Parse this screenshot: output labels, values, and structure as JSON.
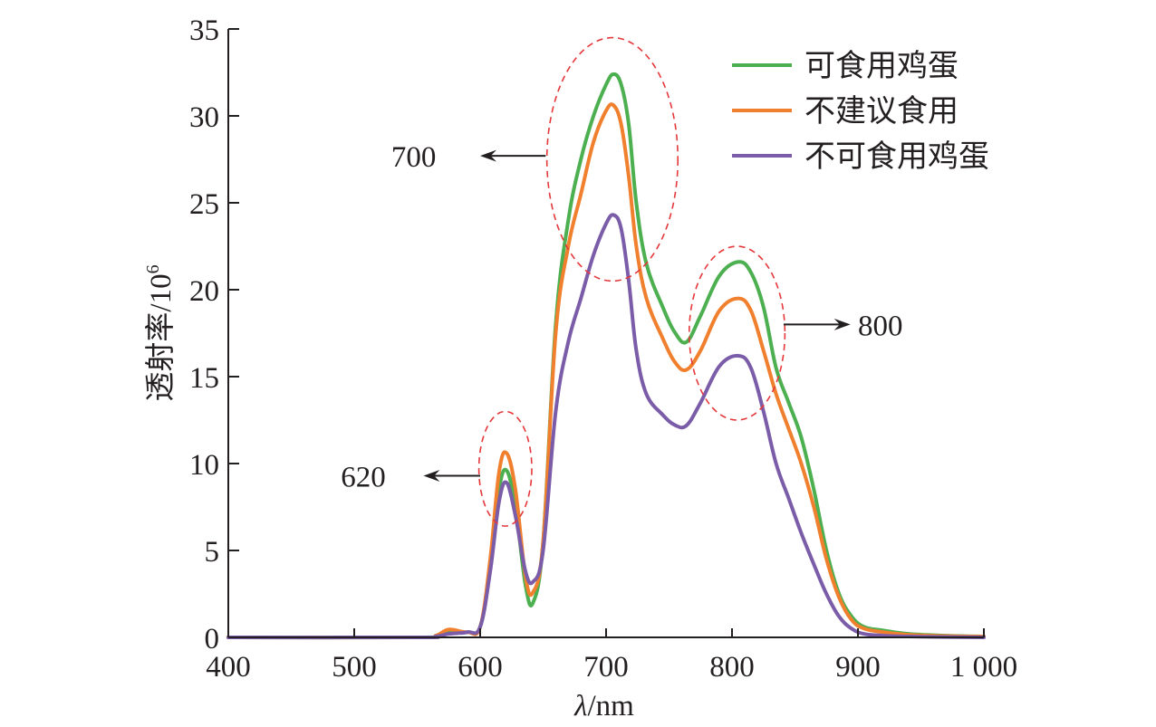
{
  "chart_data": {
    "type": "line",
    "xlabel": "λ/nm",
    "ylabel": "透射率/10",
    "ylabel_superscript": "6",
    "xlim": [
      400,
      1000
    ],
    "ylim": [
      0,
      35
    ],
    "x_ticks": [
      400,
      500,
      600,
      700,
      800,
      900,
      1000
    ],
    "x_tick_labels": [
      "400",
      "500",
      "600",
      "700",
      "800",
      "900",
      "1 000"
    ],
    "y_ticks": [
      0,
      5,
      10,
      15,
      20,
      25,
      30,
      35
    ],
    "y_tick_labels": [
      "0",
      "5",
      "10",
      "15",
      "20",
      "25",
      "30",
      "35"
    ],
    "grid": false,
    "legend_position": "top-right",
    "series": [
      {
        "name": "可食用鸡蛋",
        "color": "#4caf50",
        "points": [
          [
            400,
            0
          ],
          [
            550,
            0
          ],
          [
            565,
            0.1
          ],
          [
            575,
            0.3
          ],
          [
            590,
            0.3
          ],
          [
            600,
            0.6
          ],
          [
            608,
            4
          ],
          [
            615,
            8.5
          ],
          [
            621,
            9.6
          ],
          [
            628,
            7.5
          ],
          [
            636,
            3.0
          ],
          [
            642,
            2.0
          ],
          [
            650,
            5.5
          ],
          [
            660,
            18
          ],
          [
            670,
            24
          ],
          [
            680,
            27.5
          ],
          [
            690,
            30.0
          ],
          [
            700,
            31.8
          ],
          [
            706,
            32.4
          ],
          [
            712,
            31.8
          ],
          [
            718,
            29.5
          ],
          [
            724,
            25.0
          ],
          [
            732,
            21.5
          ],
          [
            745,
            19.0
          ],
          [
            755,
            17.5
          ],
          [
            764,
            17.0
          ],
          [
            775,
            18.5
          ],
          [
            790,
            20.8
          ],
          [
            805,
            21.6
          ],
          [
            815,
            21.0
          ],
          [
            825,
            19.0
          ],
          [
            835,
            15.5
          ],
          [
            845,
            13.5
          ],
          [
            855,
            11.5
          ],
          [
            865,
            8.5
          ],
          [
            875,
            5.0
          ],
          [
            885,
            2.5
          ],
          [
            895,
            1.2
          ],
          [
            905,
            0.6
          ],
          [
            920,
            0.4
          ],
          [
            940,
            0.2
          ],
          [
            970,
            0.1
          ],
          [
            1000,
            0.05
          ]
        ]
      },
      {
        "name": "不建议食用",
        "color": "#f07f2e",
        "points": [
          [
            400,
            0
          ],
          [
            550,
            0
          ],
          [
            565,
            0.1
          ],
          [
            575,
            0.45
          ],
          [
            590,
            0.3
          ],
          [
            600,
            0.6
          ],
          [
            608,
            4.5
          ],
          [
            615,
            9.5
          ],
          [
            621,
            10.6
          ],
          [
            628,
            8.5
          ],
          [
            636,
            3.5
          ],
          [
            642,
            2.6
          ],
          [
            650,
            5.5
          ],
          [
            660,
            17.5
          ],
          [
            670,
            22.5
          ],
          [
            680,
            25.5
          ],
          [
            690,
            28.5
          ],
          [
            700,
            30.3
          ],
          [
            706,
            30.6
          ],
          [
            712,
            29.5
          ],
          [
            718,
            26.5
          ],
          [
            724,
            22.5
          ],
          [
            732,
            19.5
          ],
          [
            745,
            17.2
          ],
          [
            755,
            15.8
          ],
          [
            764,
            15.4
          ],
          [
            775,
            16.5
          ],
          [
            790,
            18.8
          ],
          [
            805,
            19.5
          ],
          [
            815,
            18.8
          ],
          [
            825,
            16.5
          ],
          [
            835,
            14.0
          ],
          [
            845,
            12.0
          ],
          [
            855,
            10.0
          ],
          [
            865,
            7.5
          ],
          [
            875,
            4.5
          ],
          [
            885,
            2.3
          ],
          [
            895,
            1.0
          ],
          [
            905,
            0.5
          ],
          [
            920,
            0.3
          ],
          [
            940,
            0.15
          ],
          [
            970,
            0.08
          ],
          [
            1000,
            0.05
          ]
        ]
      },
      {
        "name": "不可食用鸡蛋",
        "color": "#7a5ca8",
        "points": [
          [
            400,
            0
          ],
          [
            550,
            0
          ],
          [
            565,
            0.05
          ],
          [
            575,
            0.2
          ],
          [
            590,
            0.3
          ],
          [
            600,
            0.6
          ],
          [
            608,
            3.8
          ],
          [
            615,
            7.8
          ],
          [
            621,
            8.9
          ],
          [
            628,
            7.0
          ],
          [
            636,
            3.8
          ],
          [
            642,
            3.2
          ],
          [
            650,
            5.0
          ],
          [
            660,
            13.0
          ],
          [
            670,
            17.0
          ],
          [
            680,
            19.5
          ],
          [
            690,
            22.0
          ],
          [
            700,
            23.8
          ],
          [
            706,
            24.3
          ],
          [
            712,
            23.5
          ],
          [
            718,
            20.5
          ],
          [
            724,
            16.5
          ],
          [
            732,
            14.0
          ],
          [
            745,
            12.8
          ],
          [
            755,
            12.2
          ],
          [
            764,
            12.2
          ],
          [
            775,
            13.5
          ],
          [
            790,
            15.6
          ],
          [
            805,
            16.2
          ],
          [
            815,
            15.5
          ],
          [
            825,
            13.0
          ],
          [
            835,
            10.0
          ],
          [
            845,
            8.0
          ],
          [
            855,
            6.0
          ],
          [
            865,
            4.2
          ],
          [
            875,
            2.5
          ],
          [
            885,
            1.2
          ],
          [
            895,
            0.5
          ],
          [
            905,
            0.2
          ],
          [
            920,
            0.1
          ],
          [
            940,
            0.05
          ],
          [
            970,
            0.02
          ],
          [
            1000,
            0
          ]
        ]
      }
    ],
    "annotations": [
      {
        "label": "620",
        "color": "#e5383b",
        "center": [
          620,
          9.7
        ],
        "radius_x": 21,
        "radius_y": 3.3,
        "arrow_direction": "left",
        "arrow_from": [
          600,
          9.3
        ],
        "arrow_to": [
          555,
          9.3
        ],
        "label_anchor": [
          525,
          9.3
        ]
      },
      {
        "label": "700",
        "color": "#e5383b",
        "center": [
          705,
          27.5
        ],
        "radius_x": 52,
        "radius_y": 7.0,
        "arrow_direction": "left",
        "arrow_from": [
          652,
          27.7
        ],
        "arrow_to": [
          600,
          27.7
        ],
        "label_anchor": [
          565,
          27.7
        ]
      },
      {
        "label": "800",
        "color": "#e5383b",
        "center": [
          804,
          17.5
        ],
        "radius_x": 38,
        "radius_y": 5.0,
        "arrow_direction": "right",
        "arrow_from": [
          841,
          18.0
        ],
        "arrow_to": [
          894,
          18.0
        ],
        "label_anchor": [
          900,
          18.0
        ]
      }
    ]
  }
}
